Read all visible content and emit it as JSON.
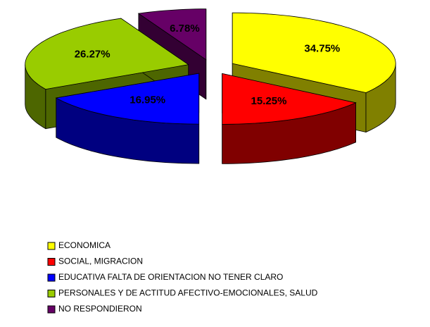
{
  "chart_data": {
    "type": "pie3d",
    "categories": [
      "ECONOMICA",
      "SOCIAL, MIGRACION",
      "EDUCATIVA FALTA DE ORIENTACION NO TENER CLARO",
      "PERSONALES Y DE ACTITUD AFECTIVO-EMOCIONALES, SALUD",
      "NO RESPONDIERON"
    ],
    "values": [
      34.75,
      15.25,
      16.95,
      26.27,
      6.78
    ],
    "value_labels": [
      "34.75%",
      "15.25%",
      "16.95%",
      "26.27%",
      "6.78%"
    ],
    "colors": [
      "#ffff00",
      "#ff0000",
      "#0000ff",
      "#99cc00",
      "#660066"
    ],
    "legend": "bottom-left"
  }
}
